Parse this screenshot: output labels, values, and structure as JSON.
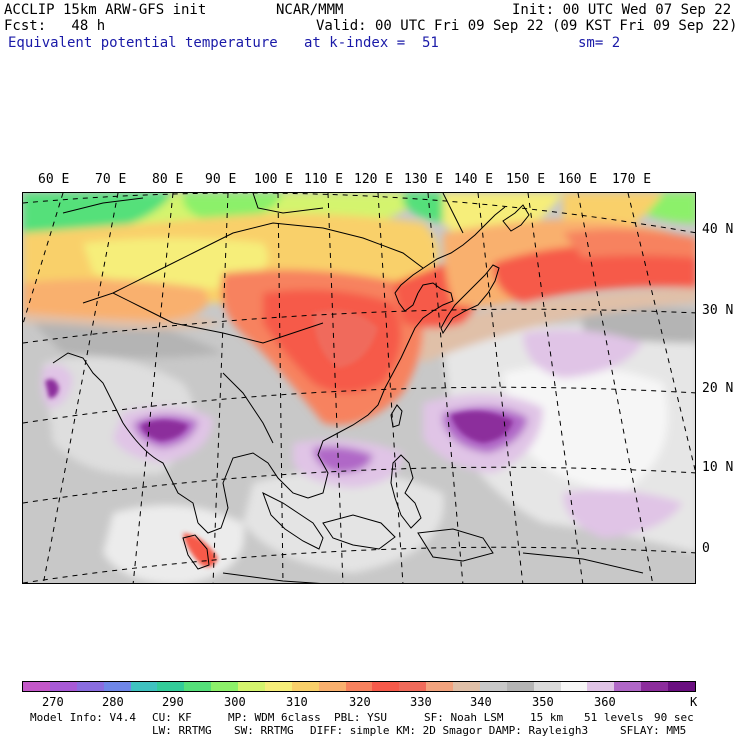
{
  "header": {
    "line1_left": "ACCLIP 15km ARW-GFS init",
    "line1_center": "NCAR/MMM",
    "line1_right": "Init: 00 UTC Wed 07 Sep 22",
    "line2_left": "Fcst:   48 h",
    "line2_right": "Valid: 00 UTC Fri 09 Sep 22 (09 KST Fri 09 Sep 22)",
    "field_name": "Equivalent potential temperature",
    "level": "at k-index =  51",
    "smoothing": "sm= 2"
  },
  "map": {
    "projection": "lambert-conformal",
    "region": "Asia / Western Pacific",
    "lon_labels": [
      "60 E",
      "70 E",
      "80 E",
      "90 E",
      "100 E",
      "110 E",
      "120 E",
      "130 E",
      "140 E",
      "150 E",
      "160 E",
      "170 E"
    ],
    "lat_labels": [
      "40 N",
      "30 N",
      "20 N",
      "10 N",
      "0"
    ],
    "colors": {
      "frame": "#000000",
      "coast": "#000000",
      "grid": "#000000"
    }
  },
  "colorbar": {
    "colors": [
      "#c458c9",
      "#a85ad6",
      "#8a6de0",
      "#6f87e8",
      "#3fc2c0",
      "#33cc99",
      "#55e07a",
      "#8cf06a",
      "#d4f46e",
      "#f6ee7a",
      "#f9d06a",
      "#f9b06e",
      "#f7825e",
      "#f65a4a",
      "#f06b5b",
      "#f2a37e",
      "#e0c0a8",
      "#c8c8c8",
      "#b4b4b4",
      "#dadada",
      "#f6f6f6",
      "#e0c4e6",
      "#b067c7",
      "#8c2d9c",
      "#6a0f80"
    ],
    "tick_labels": [
      "270",
      "280",
      "290",
      "300",
      "310",
      "320",
      "330",
      "340",
      "350",
      "360"
    ],
    "unit": "K"
  },
  "model_info": {
    "line1": [
      {
        "label": "Model Info: V4.4"
      },
      {
        "label": "CU: KF"
      },
      {
        "label": "MP: WDM 6class"
      },
      {
        "label": "PBL: YSU"
      },
      {
        "label": "SF: Noah LSM"
      },
      {
        "label": "15 km"
      },
      {
        "label": "51 levels"
      },
      {
        "label": "90 sec"
      }
    ],
    "line2": [
      {
        "label": "LW: RRTMG"
      },
      {
        "label": "SW: RRTMG"
      },
      {
        "label": "DIFF: simple KM: 2D Smagor DAMP: Rayleigh3"
      },
      {
        "label": "SFLAY: MM5"
      }
    ]
  }
}
